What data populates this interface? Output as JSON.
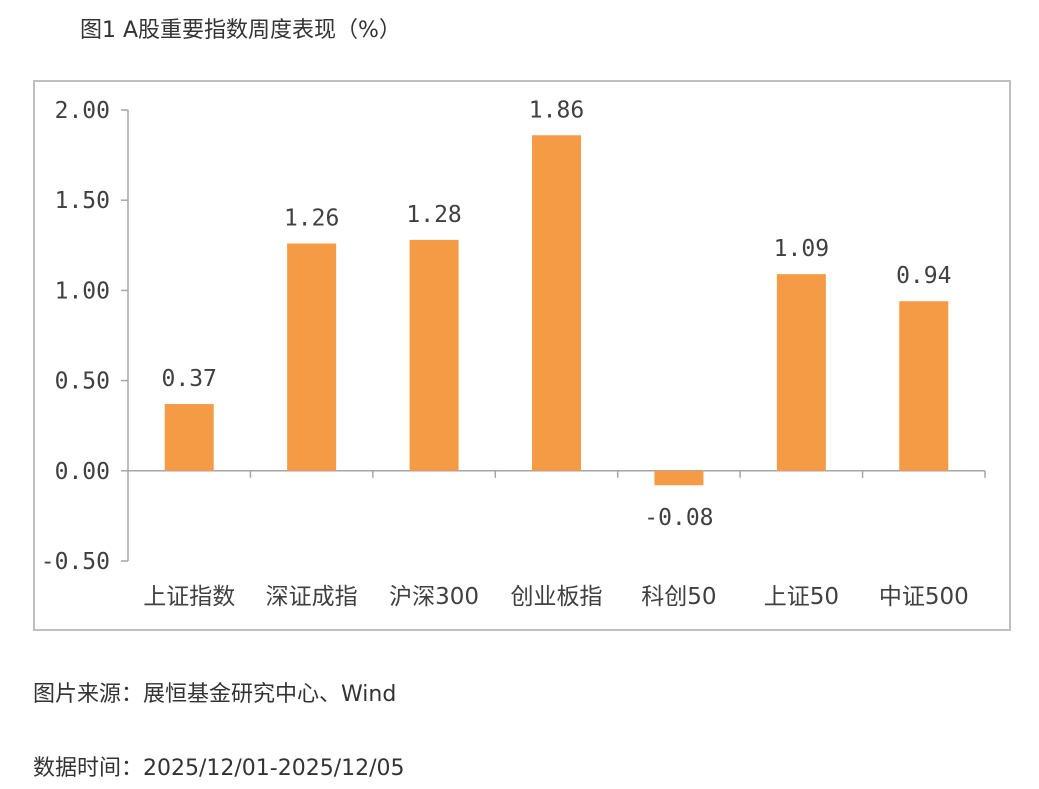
{
  "title": "图1 A股重要指数周度表现（%）",
  "source_text": "图片来源：展恒基金研究中心、Wind",
  "date_text": "数据时间：2025/12/01-2025/12/05",
  "colors": {
    "bar": "#f59a45",
    "axis": "#a6a6a6",
    "text": "#404040"
  },
  "chart_data": {
    "type": "bar",
    "categories": [
      "上证指数",
      "深证成指",
      "沪深300",
      "创业板指",
      "科创50",
      "上证50",
      "中证500"
    ],
    "values": [
      0.37,
      1.26,
      1.28,
      1.86,
      -0.08,
      1.09,
      0.94
    ],
    "data_labels": [
      "0.37",
      "1.26",
      "1.28",
      "1.86",
      "-0.08",
      "1.09",
      "0.94"
    ],
    "y_ticks": [
      "2.00",
      "1.50",
      "1.00",
      "0.50",
      "0.00",
      "-0.50"
    ],
    "y_tick_values": [
      2.0,
      1.5,
      1.0,
      0.5,
      0.0,
      -0.5
    ],
    "ylim": [
      -0.5,
      2.0
    ],
    "title": "",
    "xlabel": "",
    "ylabel": "",
    "grid": false
  }
}
